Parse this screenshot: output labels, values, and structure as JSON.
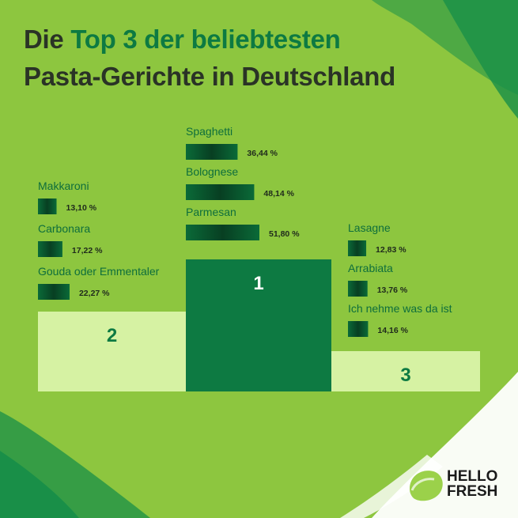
{
  "title": {
    "part1": "Die ",
    "highlight": "Top 3 der beliebtesten",
    "line2": "Pasta-Gerichte in Deutschland"
  },
  "colors": {
    "background": "#8dc63f",
    "dark_green": "#0d7a42",
    "light_green": "#d6f2a3",
    "text_dark": "#2a3326"
  },
  "chart_data": {
    "type": "bar",
    "title": "Die Top 3 der beliebtesten Pasta-Gerichte in Deutschland",
    "podium": [
      {
        "rank": "2",
        "position": "left"
      },
      {
        "rank": "1",
        "position": "center"
      },
      {
        "rank": "3",
        "position": "right"
      }
    ],
    "groups": [
      {
        "rank": "2",
        "items": [
          {
            "label": "Makkaroni",
            "value": 13.1,
            "display": "13,10 %"
          },
          {
            "label": "Carbonara",
            "value": 17.22,
            "display": "17,22 %"
          },
          {
            "label": "Gouda oder Emmentaler",
            "value": 22.27,
            "display": "22,27 %"
          }
        ]
      },
      {
        "rank": "1",
        "items": [
          {
            "label": "Spaghetti",
            "value": 36.44,
            "display": "36,44 %"
          },
          {
            "label": "Bolognese",
            "value": 48.14,
            "display": "48,14 %"
          },
          {
            "label": "Parmesan",
            "value": 51.8,
            "display": "51,80 %"
          }
        ]
      },
      {
        "rank": "3",
        "items": [
          {
            "label": "Lasagne",
            "value": 12.83,
            "display": "12,83 %"
          },
          {
            "label": "Arrabiata",
            "value": 13.76,
            "display": "13,76 %"
          },
          {
            "label": "Ich nehme was da ist",
            "value": 14.16,
            "display": "14,16 %"
          }
        ]
      }
    ]
  },
  "logo": {
    "line1": "HELLO",
    "line2": "FRESH"
  }
}
